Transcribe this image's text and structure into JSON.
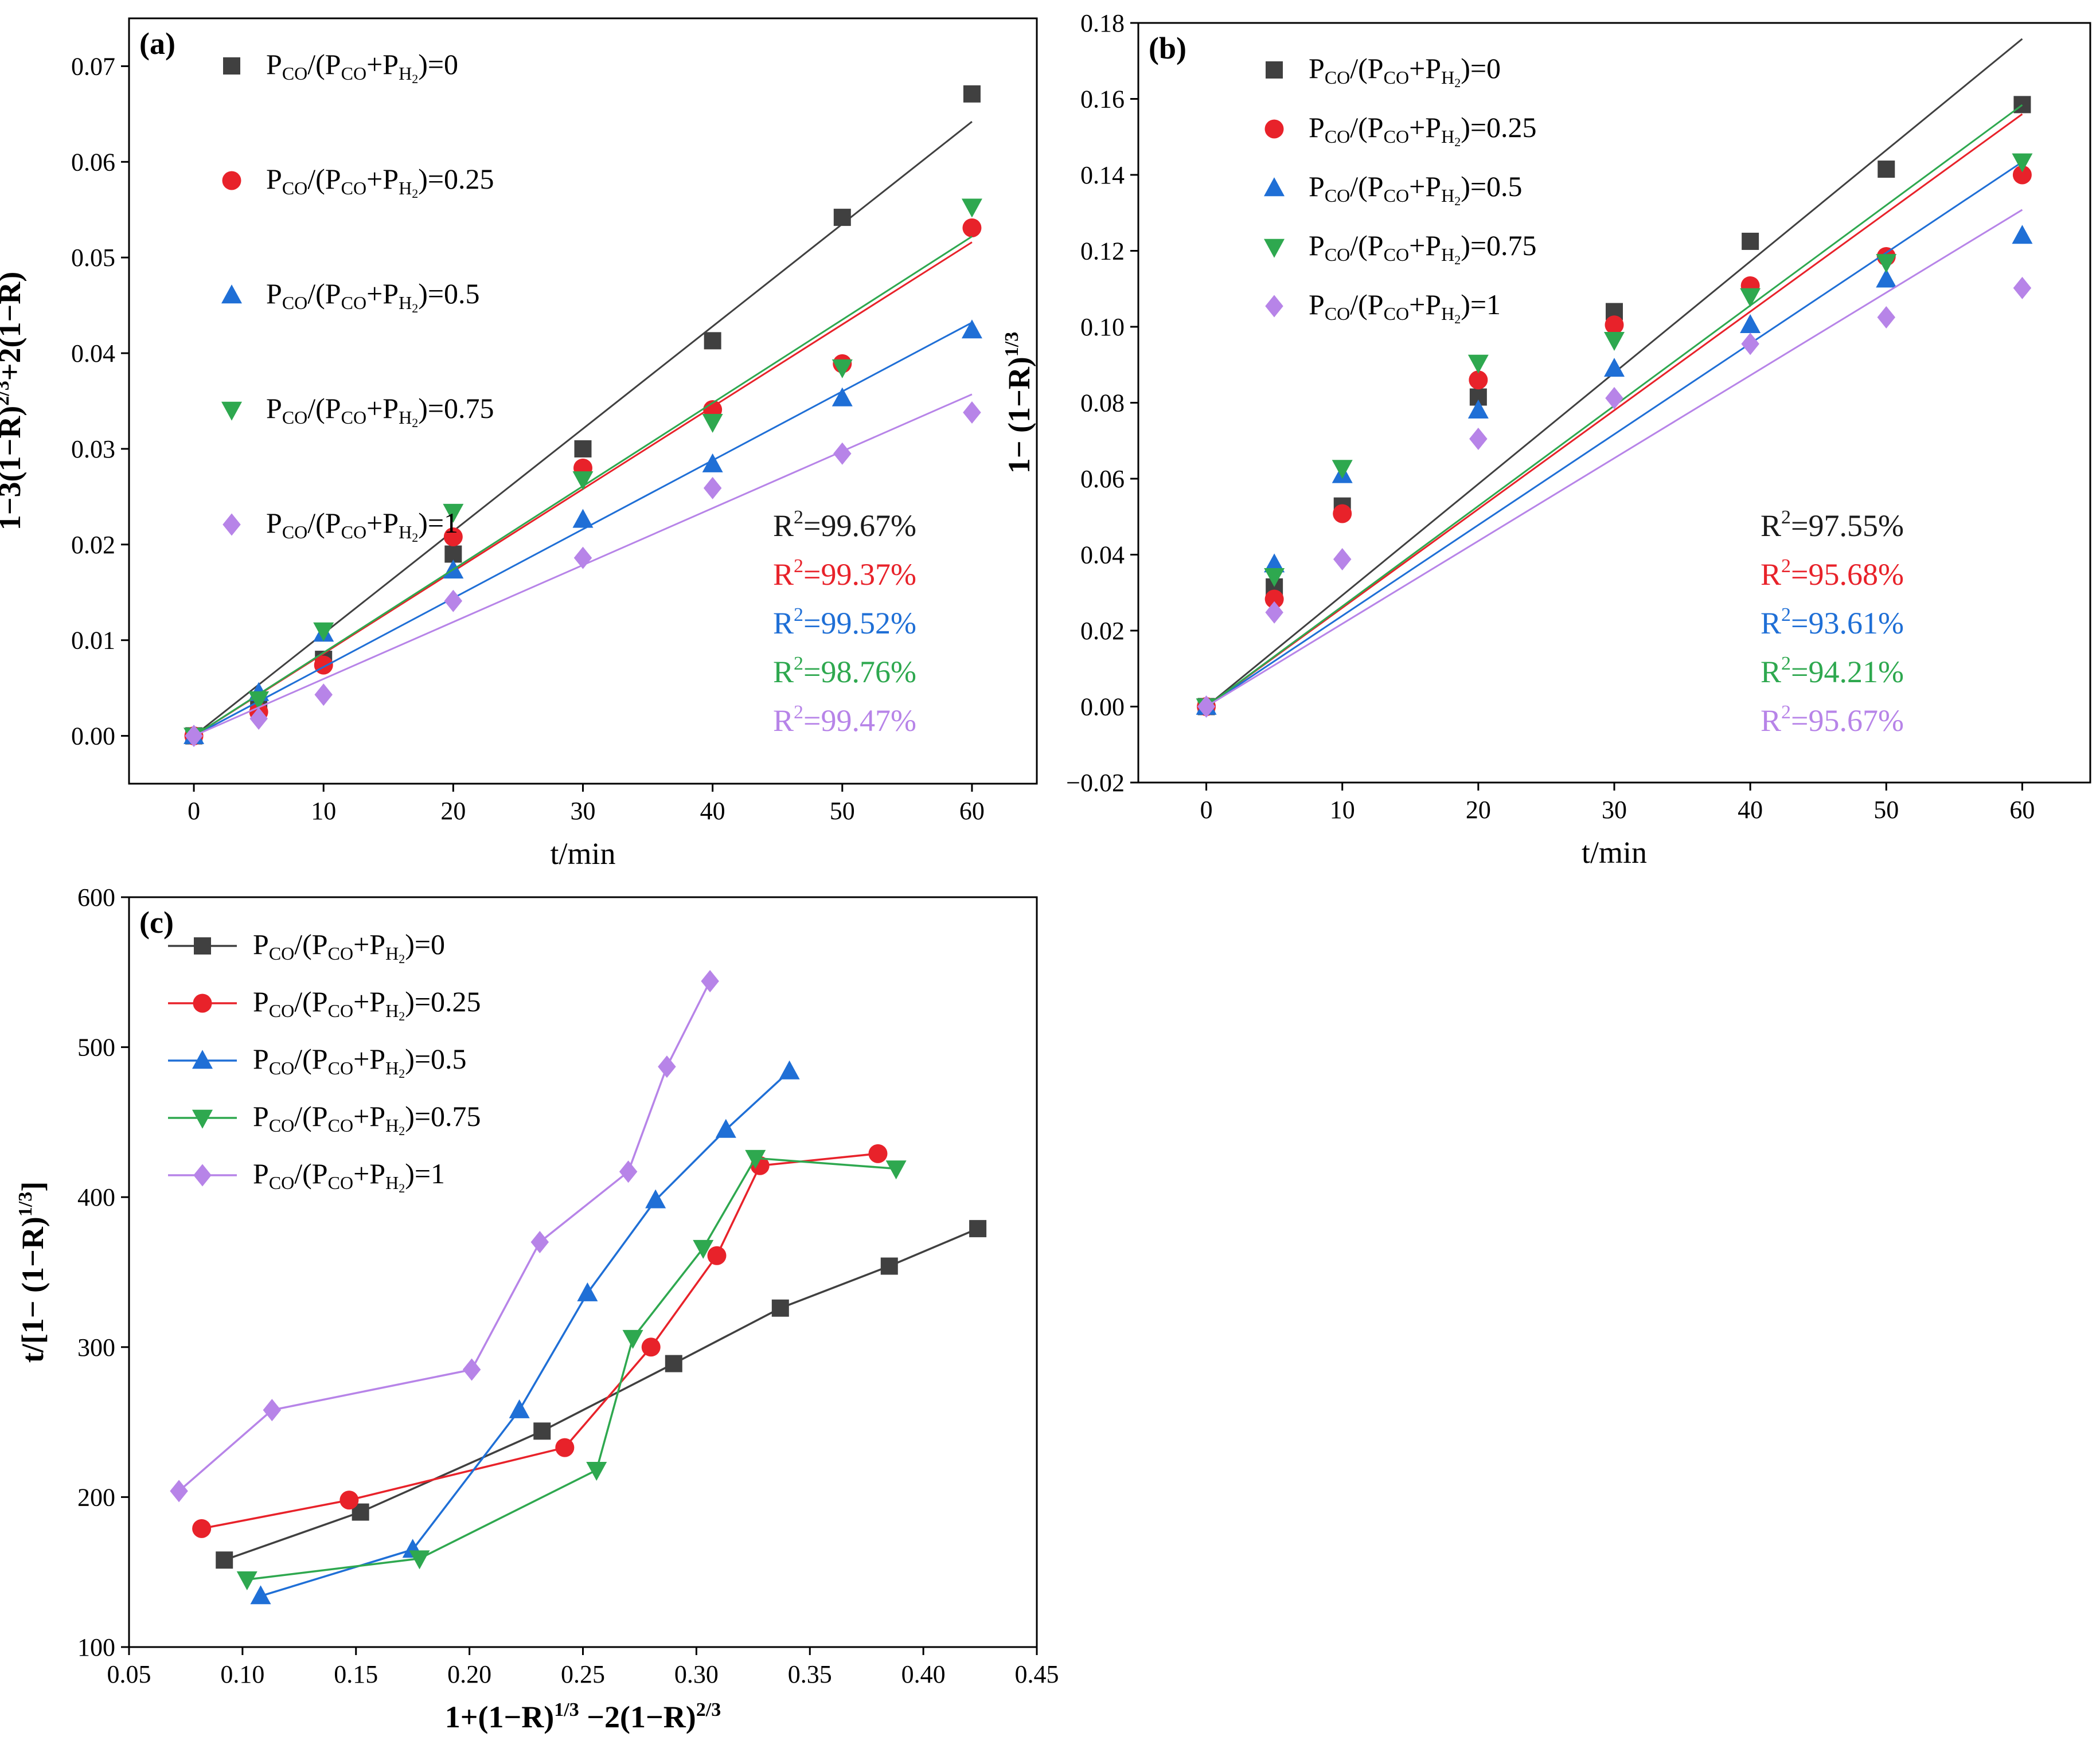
{
  "figure": {
    "colors": {
      "s0": "#404040",
      "s1": "#e8222a",
      "s2": "#1f6fd6",
      "s3": "#2ea84f",
      "s4": "#b784e8"
    },
    "legend": [
      {
        "prefix": "P",
        "sub1": "CO",
        "mid": "/(P",
        "sub2": "CO",
        "mid2": "+P",
        "sub3": "H",
        "sub4": "2",
        "end": ")=0"
      },
      {
        "prefix": "P",
        "sub1": "CO",
        "mid": "/(P",
        "sub2": "CO",
        "mid2": "+P",
        "sub3": "H",
        "sub4": "2",
        "end": ")=0.25"
      },
      {
        "prefix": "P",
        "sub1": "CO",
        "mid": "/(P",
        "sub2": "CO",
        "mid2": "+P",
        "sub3": "H",
        "sub4": "2",
        "end": ")=0.5"
      },
      {
        "prefix": "P",
        "sub1": "CO",
        "mid": "/(P",
        "sub2": "CO",
        "mid2": "+P",
        "sub3": "H",
        "sub4": "2",
        "end": ")=0.75"
      },
      {
        "prefix": "P",
        "sub1": "CO",
        "mid": "/(P",
        "sub2": "CO",
        "mid2": "+P",
        "sub3": "H",
        "sub4": "2",
        "end": ")=1"
      }
    ]
  },
  "chart_data": [
    {
      "id": "a",
      "panel_label": "(a)",
      "type": "scatter",
      "xlabel": "t/min",
      "ylabel_parts": [
        "1−3(1−R)",
        "2/3",
        "+2(1−R)"
      ],
      "xlim": [
        -5,
        65
      ],
      "ylim": [
        -0.005,
        0.075
      ],
      "xticks": [
        0,
        10,
        20,
        30,
        40,
        50,
        60
      ],
      "xtick_labels": [
        "0",
        "10",
        "20",
        "30",
        "40",
        "50",
        "60"
      ],
      "yticks": [
        0.0,
        0.01,
        0.02,
        0.03,
        0.04,
        0.05,
        0.06,
        0.07
      ],
      "ytick_labels": [
        "0.00",
        "0.01",
        "0.02",
        "0.03",
        "0.04",
        "0.05",
        "0.06",
        "0.07"
      ],
      "x": [
        0,
        5,
        10,
        20,
        30,
        40,
        50,
        60
      ],
      "series": [
        {
          "name": "0",
          "marker": "square",
          "values": [
            0,
            0.003,
            0.008,
            0.019,
            0.03,
            0.0413,
            0.0542,
            0.0671
          ],
          "fit_slope": 0.00107
        },
        {
          "name": "0.25",
          "marker": "circle",
          "values": [
            0,
            0.0025,
            0.0074,
            0.0208,
            0.028,
            0.0341,
            0.0389,
            0.0531
          ],
          "fit_slope": 0.00086
        },
        {
          "name": "0.5",
          "marker": "triangle-up",
          "values": [
            0,
            0.0045,
            0.0107,
            0.0173,
            0.0226,
            0.0284,
            0.0353,
            0.0424
          ],
          "fit_slope": 0.00072
        },
        {
          "name": "0.75",
          "marker": "triangle-down",
          "values": [
            0,
            0.0038,
            0.011,
            0.0234,
            0.0268,
            0.0328,
            0.0385,
            0.0553
          ],
          "fit_slope": 0.00087
        },
        {
          "name": "1",
          "marker": "diamond",
          "values": [
            0,
            0.0018,
            0.0043,
            0.0141,
            0.0186,
            0.0259,
            0.0295,
            0.0338
          ],
          "fit_slope": 0.000595
        }
      ],
      "r2": [
        "=99.67%",
        "=99.37%",
        "=99.52%",
        "=98.76%",
        "=99.47%"
      ]
    },
    {
      "id": "b",
      "panel_label": "(b)",
      "type": "scatter",
      "xlabel": "t/min",
      "ylabel_parts": [
        "1− (1−R)",
        "1/3",
        ""
      ],
      "xlim": [
        -5,
        65
      ],
      "ylim": [
        -0.02,
        0.18
      ],
      "xticks": [
        0,
        10,
        20,
        30,
        40,
        50,
        60
      ],
      "xtick_labels": [
        "0",
        "10",
        "20",
        "30",
        "40",
        "50",
        "60"
      ],
      "yticks": [
        -0.02,
        0.0,
        0.02,
        0.04,
        0.06,
        0.08,
        0.1,
        0.12,
        0.14,
        0.16,
        0.18
      ],
      "ytick_labels": [
        "−0.02",
        "0.00",
        "0.02",
        "0.04",
        "0.06",
        "0.08",
        "0.10",
        "0.12",
        "0.14",
        "0.16",
        "0.18"
      ],
      "x": [
        0,
        5,
        10,
        20,
        30,
        40,
        50,
        60
      ],
      "series": [
        {
          "name": "0",
          "marker": "square",
          "values": [
            0,
            0.0315,
            0.0528,
            0.0815,
            0.104,
            0.1225,
            0.1415,
            0.1585
          ],
          "fit_slope": 0.00293
        },
        {
          "name": "0.25",
          "marker": "circle",
          "values": [
            0,
            0.0283,
            0.0508,
            0.086,
            0.1005,
            0.1108,
            0.1185,
            0.14
          ],
          "fit_slope": 0.0026
        },
        {
          "name": "0.5",
          "marker": "triangle-up",
          "values": [
            0,
            0.0375,
            0.061,
            0.078,
            0.089,
            0.1005,
            0.1125,
            0.124
          ],
          "fit_slope": 0.00239
        },
        {
          "name": "0.75",
          "marker": "triangle-down",
          "values": [
            0,
            0.0343,
            0.0628,
            0.0905,
            0.0965,
            0.108,
            0.117,
            0.1435
          ],
          "fit_slope": 0.00264
        },
        {
          "name": "1",
          "marker": "diamond",
          "values": [
            0,
            0.0248,
            0.0388,
            0.0705,
            0.0812,
            0.0955,
            0.1025,
            0.1102
          ],
          "fit_slope": 0.00218
        }
      ],
      "r2": [
        "=97.55%",
        "=95.68%",
        "=93.61%",
        "=94.21%",
        "=95.67%"
      ]
    },
    {
      "id": "c",
      "panel_label": "(c)",
      "type": "line",
      "xlabel_parts": [
        "1+(1−R)",
        "1/3",
        " −2(1−R)",
        "2/3"
      ],
      "ylabel_parts": [
        "t/[1− (1−R)",
        "1/3",
        "]"
      ],
      "xlim": [
        0.05,
        0.45
      ],
      "ylim": [
        100,
        600
      ],
      "xticks": [
        0.05,
        0.1,
        0.15,
        0.2,
        0.25,
        0.3,
        0.35,
        0.4,
        0.45
      ],
      "xtick_labels": [
        "0.05",
        "0.10",
        "0.15",
        "0.20",
        "0.25",
        "0.30",
        "0.35",
        "0.40",
        "0.45"
      ],
      "yticks": [
        100,
        200,
        300,
        400,
        500,
        600
      ],
      "ytick_labels": [
        "100",
        "200",
        "300",
        "400",
        "500",
        "600"
      ],
      "series": [
        {
          "name": "0",
          "marker": "square",
          "x": [
            0.092,
            0.152,
            0.232,
            0.29,
            0.337,
            0.385,
            0.424
          ],
          "y": [
            158,
            190,
            244,
            289,
            326,
            354,
            379
          ]
        },
        {
          "name": "0.25",
          "marker": "circle",
          "x": [
            0.082,
            0.147,
            0.242,
            0.28,
            0.309,
            0.328,
            0.38
          ],
          "y": [
            179,
            198,
            233,
            300,
            361,
            421,
            429
          ]
        },
        {
          "name": "0.5",
          "marker": "triangle-up",
          "x": [
            0.108,
            0.175,
            0.222,
            0.252,
            0.282,
            0.313,
            0.341
          ],
          "y": [
            134,
            165,
            258,
            336,
            398,
            445,
            484
          ]
        },
        {
          "name": "0.75",
          "marker": "triangle-down",
          "x": [
            0.102,
            0.178,
            0.256,
            0.272,
            0.303,
            0.326,
            0.388
          ],
          "y": [
            145,
            159,
            218,
            306,
            366,
            426,
            419
          ]
        },
        {
          "name": "1",
          "marker": "diamond",
          "x": [
            0.072,
            0.113,
            0.201,
            0.231,
            0.27,
            0.287,
            0.306
          ],
          "y": [
            204,
            258,
            285,
            370,
            417,
            487,
            544
          ]
        }
      ]
    }
  ]
}
